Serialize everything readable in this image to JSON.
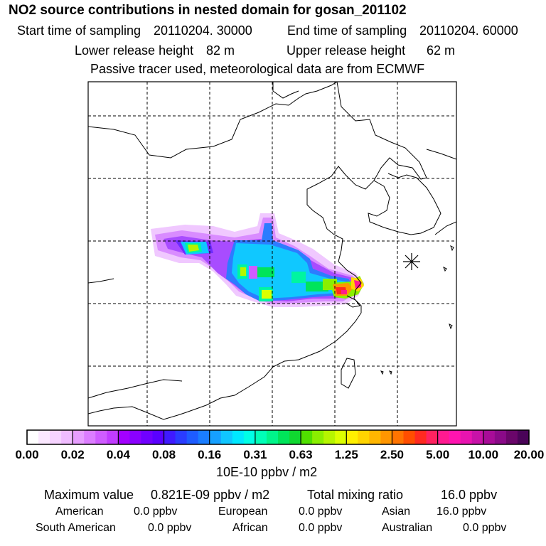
{
  "header": {
    "title": "NO2 source contributions in nested domain for gosan_201102",
    "start_label": "Start time of sampling",
    "start_value": "20110204. 30000",
    "end_label": "End time of sampling",
    "end_value": "20110204. 60000",
    "lower_label": "Lower release height",
    "lower_value": "82 m",
    "upper_label": "Upper release height",
    "upper_value": "62 m",
    "note": "Passive tracer used, meteorological data are from ECMWF"
  },
  "colorbar": {
    "colors": [
      "#ffffff",
      "#fbe8ff",
      "#f6d3ff",
      "#f0bcff",
      "#e79eff",
      "#dc7dff",
      "#cf5cff",
      "#c13cff",
      "#a300ff",
      "#8a00ff",
      "#7000ff",
      "#5a00ff",
      "#3f1aff",
      "#2a3cff",
      "#1e5cff",
      "#1a7dff",
      "#16a0ff",
      "#10c6ff",
      "#00e8ff",
      "#00ffe6",
      "#00ffb8",
      "#00f58a",
      "#00e45a",
      "#10d830",
      "#50e000",
      "#8aef00",
      "#b6f500",
      "#dcff00",
      "#fff000",
      "#ffd400",
      "#ffb600",
      "#ff9600",
      "#ff7400",
      "#ff4e00",
      "#ff2a20",
      "#ff2260",
      "#ff1a90",
      "#ff14b0",
      "#e814b0",
      "#c812a8",
      "#a80c98",
      "#8a0a88",
      "#6a066a",
      "#4a0458"
    ],
    "tick_labels": [
      "0.00",
      "0.02",
      "0.04",
      "0.08",
      "0.16",
      "0.31",
      "0.63",
      "1.25",
      "2.50",
      "5.00",
      "10.00",
      "20.00"
    ],
    "unit": "10E-10 ppbv / m2"
  },
  "stats": {
    "max_label": "Maximum value",
    "max_value": "0.821E-09 ppbv / m2",
    "total_label": "Total mixing ratio",
    "total_value": "16.0 ppbv",
    "rows": [
      [
        {
          "label": "American",
          "value": "0.0 ppbv"
        },
        {
          "label": "European",
          "value": "0.0 ppbv"
        },
        {
          "label": "Asian",
          "value": "16.0 ppbv"
        }
      ],
      [
        {
          "label": "South American",
          "value": "0.0 ppbv"
        },
        {
          "label": "African",
          "value": "0.0 ppbv"
        },
        {
          "label": "Australian",
          "value": "0.0 ppbv"
        }
      ]
    ]
  },
  "map": {
    "receptor_marker": "asterisk-marker"
  }
}
